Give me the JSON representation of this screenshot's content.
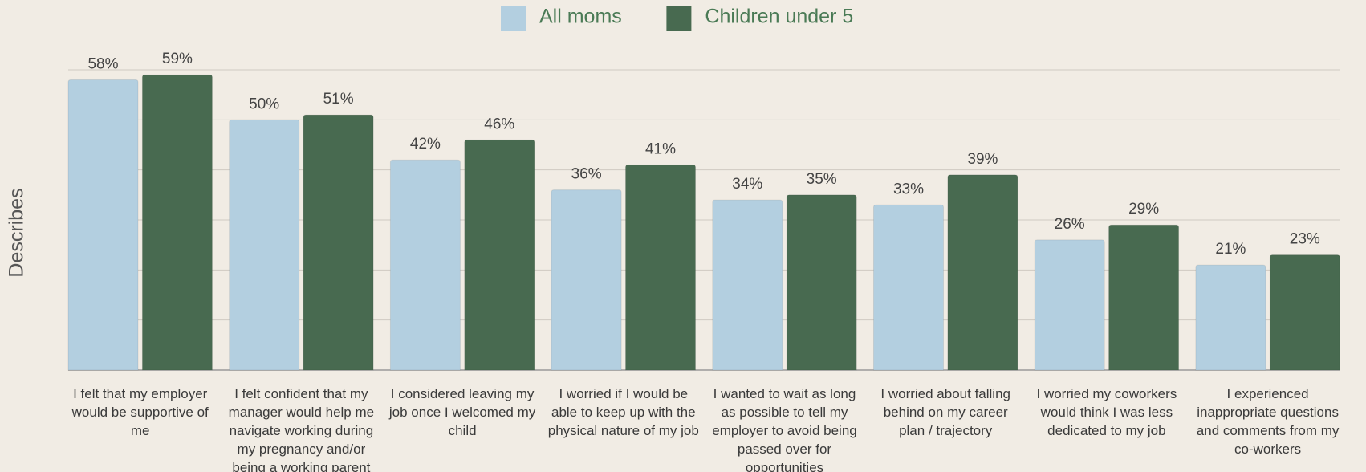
{
  "chart_data": {
    "type": "bar",
    "y_label": "Describes",
    "categories": [
      "I felt that my employer would be supportive of me",
      "I felt confident that my manager would help me navigate working during my pregnancy and/or being a working parent",
      "I considered leaving my job once I welcomed my child",
      "I worried if I would be able to keep up with the physical nature of my job",
      "I wanted to wait as long as possible to tell my employer to avoid being passed over for opportunities",
      "I worried about falling behind on my career plan / trajectory",
      "I worried my coworkers would think I was less dedicated to my job",
      "I experienced inappropriate questions and comments from my co-workers"
    ],
    "series": [
      {
        "name": "All moms",
        "color": "#b3cfe0",
        "values": [
          58,
          50,
          42,
          36,
          34,
          33,
          26,
          21
        ],
        "value_labels": [
          "58%",
          "50%",
          "42%",
          "36%",
          "34%",
          "33%",
          "26%",
          "21%"
        ]
      },
      {
        "name": "Children under 5",
        "color": "#486a50",
        "values": [
          59,
          51,
          46,
          41,
          35,
          39,
          29,
          23
        ],
        "value_labels": [
          "59%",
          "51%",
          "46%",
          "41%",
          "35%",
          "39%",
          "29%",
          "23%"
        ]
      }
    ],
    "ylim": [
      0,
      60
    ],
    "yticks": [
      0,
      10,
      20,
      30,
      40,
      50,
      60
    ],
    "grid": true,
    "legend": "top"
  }
}
